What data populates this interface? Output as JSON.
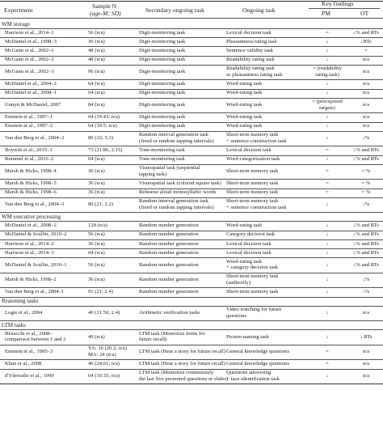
{
  "header": {
    "experiment": "Experiment",
    "sample_line1": "Sample N",
    "sample_line2": "(age-M; SD)",
    "secondary": "Secondary ongoing task",
    "ongoing": "Ongoing task",
    "key_findings": "Key findings",
    "pm": "PM",
    "ot": "OT"
  },
  "sections": [
    {
      "title": "WM storage",
      "rows": [
        {
          "exp": [
            "Harrison et al., 2014–1"
          ],
          "n": [
            "56 (n/a)"
          ],
          "sec": [
            "Digit-monitoring task"
          ],
          "ong": [
            "Lexical decision task"
          ],
          "pm": [
            "="
          ],
          "ot": [
            "↓% and RTs"
          ]
        },
        {
          "exp": [
            "McDaniel et al., 1998–3"
          ],
          "n": [
            "30 (n/a)"
          ],
          "sec": [
            "Digit-monitoring task"
          ],
          "ong": [
            "Pleasantness rating task"
          ],
          "pm": [
            "↓"
          ],
          "ot": [
            "↓RTs"
          ]
        },
        {
          "exp": [
            "McGann et al., 2002–1"
          ],
          "n": [
            "48 (n/a)"
          ],
          "sec": [
            "Digit-monitoring task"
          ],
          "ong": [
            "Sentence validity task"
          ],
          "pm": [
            "↓"
          ],
          "ot": [
            "="
          ]
        },
        {
          "exp": [
            "McGann et al., 2002–2"
          ],
          "n": [
            "48 (n/a)"
          ],
          "sec": [
            "Digit-monitoring task"
          ],
          "ong": [
            "Readability rating task"
          ],
          "pm": [
            "↓"
          ],
          "ot": [
            "n/a"
          ]
        },
        {
          "exp": [
            "McGann et al., 2002–3"
          ],
          "n": [
            "96 (n/a)"
          ],
          "sec": [
            "Digit-monitoring task"
          ],
          "ong": [
            "Readability rating task",
            "or pleasantness rating task"
          ],
          "pm": [
            "= (readability",
            "rating task)"
          ],
          "ot": [
            "n/a"
          ]
        },
        {
          "exp": [
            "McDaniel et al., 2004–2"
          ],
          "n": [
            "64 (n/a)"
          ],
          "sec": [
            "Digit-monitoring task"
          ],
          "ong": [
            "Word-rating task"
          ],
          "pm": [
            "↓"
          ],
          "ot": [
            "n/a"
          ]
        },
        {
          "exp": [
            "McDaniel et al., 2008–1"
          ],
          "n": [
            "64 (n/a)"
          ],
          "sec": [
            "Digit-monitoring task"
          ],
          "ong": [
            "Word-rating task"
          ],
          "pm": [
            "↓"
          ],
          "ot": [
            "n/a"
          ]
        },
        {
          "exp": [
            "Gunyn & McDaniel, 2007"
          ],
          "n": [
            "84 (n/a)"
          ],
          "sec": [
            "Digit-monitoring task"
          ],
          "ong": [
            "Word-rating task"
          ],
          "pm": [
            "= (preexposed",
            "targets)"
          ],
          "ot": [
            "n/a"
          ]
        },
        {
          "exp": [
            "Einstein et al., 1997–1"
          ],
          "n": [
            "64 (19.43; n/a)"
          ],
          "sec": [
            "Digit-monitoring task"
          ],
          "ong": [
            "Word-rating task"
          ],
          "pm": [
            "↓"
          ],
          "ot": [
            "n/a"
          ]
        },
        {
          "exp": [
            "Einstein et al., 1997–2"
          ],
          "n": [
            "64 (19.5; n/a)"
          ],
          "sec": [
            "Digit-monitoring task"
          ],
          "ong": [
            "Word-rating task"
          ],
          "pm": [
            "↓"
          ],
          "ot": [
            "n/a"
          ]
        },
        {
          "exp": [
            "Van den Berg et al., 2004–2"
          ],
          "n": [
            "80 (22; 5.3)"
          ],
          "sec": [
            "Random interval generation task",
            "(fixed or random tapping intervals)"
          ],
          "ong": [
            "Short-term memory task",
            "+ sentence construction task"
          ],
          "pm": [
            "↓"
          ],
          "ot": [
            "↓%"
          ]
        },
        {
          "exp": [
            "Boywitt et al., 2015–1"
          ],
          "n": [
            "73 (21.86; 2.15)"
          ],
          "sec": [
            "Tone-monitoring task"
          ],
          "ong": [
            "Lexical decision task"
          ],
          "pm": [
            "="
          ],
          "ot": [
            "↓% and RTs"
          ]
        },
        {
          "exp": [
            "Rummel et al., 2016–2"
          ],
          "n": [
            "64 (n/a)"
          ],
          "sec": [
            "Tone-monitoring task"
          ],
          "ong": [
            "Word-categorization task"
          ],
          "pm": [
            "↓"
          ],
          "ot": [
            "↓% and RTs"
          ]
        },
        {
          "exp": [
            "Marsh & Hicks, 1998–4"
          ],
          "n": [
            "36 (n/a)"
          ],
          "sec": [
            "Visuospatial task (sequential",
            "tapping task)"
          ],
          "ong": [
            "Short-term memory task"
          ],
          "pm": [
            "="
          ],
          "ot": [
            "= %"
          ]
        },
        {
          "exp": [
            "Marsh & Hicks, 1998–5"
          ],
          "n": [
            "36 (n/a)"
          ],
          "sec": [
            "Visuospatial task (colored square task)"
          ],
          "ong": [
            "Short-term memory task"
          ],
          "pm": [
            "="
          ],
          "ot": [
            "= %"
          ]
        },
        {
          "exp": [
            "Marsh & Hicks, 1998–6"
          ],
          "n": [
            "36 (n/a)"
          ],
          "sec": [
            "Rehearse aloud monosyllabic words"
          ],
          "ong": [
            "Short-term memory task"
          ],
          "pm": [
            "="
          ],
          "ot": [
            "= %"
          ]
        },
        {
          "exp": [
            "Van den Berg et al., 2004–3"
          ],
          "n": [
            "80 (21; 2.2)"
          ],
          "sec": [
            "Random interval generation task",
            "(fixed or random tapping intervals)"
          ],
          "ong": [
            "Short-term memory task",
            "+ sentence construction task"
          ],
          "pm": [
            "↓"
          ],
          "ot": [
            "↓%"
          ]
        }
      ]
    },
    {
      "title": "WM executive processing",
      "rows": [
        {
          "exp": [
            "McDaniel et al., 2008–2"
          ],
          "n": [
            "128 (n/a)"
          ],
          "sec": [
            "Random number generation"
          ],
          "ong": [
            "Word-rating task"
          ],
          "pm": [
            "↓"
          ],
          "ot": [
            "↓% and RTs"
          ]
        },
        {
          "exp": [
            "McDaniel & Scullin, 2010–2"
          ],
          "n": [
            "56 (n/a)"
          ],
          "sec": [
            "Random number generation"
          ],
          "ong": [
            "Category decision task"
          ],
          "pm": [
            "↓"
          ],
          "ot": [
            "↓% and RTs"
          ]
        },
        {
          "exp": [
            "Harrison et al., 2014–2"
          ],
          "n": [
            "36 (n/a)"
          ],
          "sec": [
            "Random number generation"
          ],
          "ong": [
            "Lexical decision task"
          ],
          "pm": [
            "↓"
          ],
          "ot": [
            "↓% and RTs"
          ]
        },
        {
          "exp": [
            "Harrison et al., 2014–3"
          ],
          "n": [
            "64 (n/a)"
          ],
          "sec": [
            "Random number generation"
          ],
          "ong": [
            "Lexical decision task"
          ],
          "pm": [
            "↓"
          ],
          "ot": [
            "↓% and RTs"
          ]
        },
        {
          "exp": [
            "McDaniel & Scullin, 2010–1"
          ],
          "n": [
            "56 (n/a)"
          ],
          "sec": [
            "Random number generation"
          ],
          "ong": [
            "Word-rating task",
            "+ category decision task"
          ],
          "pm": [
            "↓"
          ],
          "ot": [
            "↓% and RTs"
          ]
        },
        {
          "exp": [
            "Marsh & Hicks, 1998–2"
          ],
          "n": [
            "36 (n/a)"
          ],
          "sec": [
            "Random number generation"
          ],
          "ong": [
            "Short-term memory task",
            "(auditorily)"
          ],
          "pm": [
            "↓"
          ],
          "ot": [
            "↓%"
          ]
        },
        {
          "exp": [
            "Van den Berg et al., 2004–1"
          ],
          "n": [
            "91 (21; 2.4)"
          ],
          "sec": [
            "Random number generation"
          ],
          "ong": [
            "Short-term memory task"
          ],
          "pm": [
            "↓"
          ],
          "ot": [
            "↓%"
          ]
        }
      ]
    },
    {
      "title": "Reasoning tasks",
      "rows": [
        {
          "exp": [
            "Logie et al., 2004"
          ],
          "n": [
            "40 (21.50; 2.4)"
          ],
          "sec": [
            "Arithmetic verification tasks"
          ],
          "ong": [
            "Video watching for future",
            "questions"
          ],
          "pm": [
            "↓"
          ],
          "ot": [
            "n/a"
          ]
        }
      ]
    },
    {
      "title": "LTM tasks",
      "rows": [
        {
          "exp": [
            "Bisiacchi et al., 2008–",
            "comparison between 1 and 2"
          ],
          "n": [
            "40 (n/a)"
          ],
          "sec": [
            "LTM task (Memorize items for",
            "future recall)"
          ],
          "ong": [
            "Picture-naming task"
          ],
          "pm": [
            "↓"
          ],
          "ot": [
            "↓ RTs"
          ]
        },
        {
          "exp": [
            "Einstein et al., 1995–3"
          ],
          "n": [
            "YA: 36 (20.2; n/a)",
            "MA: 24 (n/a)"
          ],
          "sec": [
            "LTM task (Hear a story for future recall)"
          ],
          "ong": [
            "General knowledge questions"
          ],
          "pm": [
            "="
          ],
          "ot": [
            "n/a"
          ]
        },
        {
          "exp": [
            "Khan et al., 2008"
          ],
          "n": [
            "40 (24.61; n/a)"
          ],
          "sec": [
            "LTM task (Hear a story for future recall)"
          ],
          "ong": [
            "General knowledge questions"
          ],
          "pm": [
            "="
          ],
          "ot": [
            "n/a"
          ]
        },
        {
          "exp": [
            "d'Ydewalle et al., 1999"
          ],
          "n": [
            "64 (19.35; n/a)"
          ],
          "sec": [
            "LTM task (Memorize continuously",
            "the last five presented questions or slides)"
          ],
          "ong": [
            "Questions answering",
            "+ face-identification task"
          ],
          "pm": [
            "↓"
          ],
          "ot": [
            "n/a"
          ]
        }
      ]
    }
  ]
}
